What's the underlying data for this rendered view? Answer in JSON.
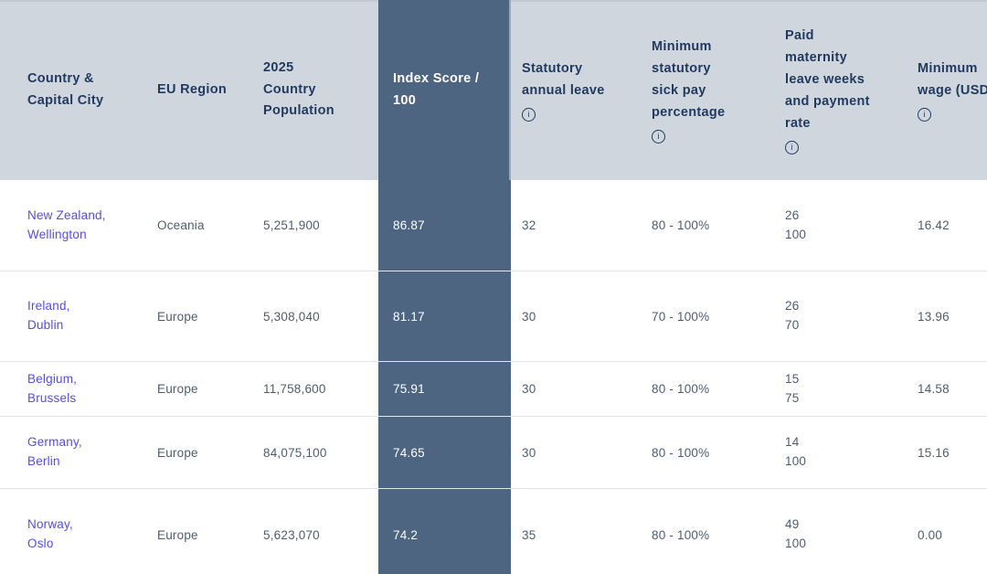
{
  "colors": {
    "header_bg": "#cfd6de",
    "header_top_strip": "#c2cbd4",
    "highlight_column_bg": "#4d6581",
    "header_text": "#233a5f",
    "body_text": "#505c6e",
    "link_text": "#554de8",
    "row_divider": "#e2e6eb",
    "highlight_text": "#ffffff"
  },
  "icons": {
    "info_glyph": "i"
  },
  "table": {
    "columns": [
      {
        "id": "country",
        "lines": [
          "Country &",
          "Capital City"
        ],
        "info": false,
        "highlight": false
      },
      {
        "id": "region",
        "lines": [
          "EU Region"
        ],
        "info": false,
        "highlight": false
      },
      {
        "id": "population",
        "lines": [
          "2025",
          "Country",
          "Population"
        ],
        "info": false,
        "highlight": false
      },
      {
        "id": "index-score",
        "lines": [
          "Index Score /",
          "100"
        ],
        "info": false,
        "highlight": true
      },
      {
        "id": "annual-leave",
        "lines": [
          "Statutory",
          "annual leave"
        ],
        "info": true,
        "highlight": false
      },
      {
        "id": "sick-pay",
        "lines": [
          "Minimum",
          "statutory",
          "sick pay",
          "percentage"
        ],
        "info": true,
        "highlight": false
      },
      {
        "id": "maternity",
        "lines": [
          "Paid",
          "maternity",
          "leave weeks",
          "and payment",
          "rate"
        ],
        "info": true,
        "highlight": false
      },
      {
        "id": "min-wage",
        "lines": [
          "Minimum",
          "wage (USD"
        ],
        "info": true,
        "highlight": false
      }
    ],
    "rows": [
      {
        "country": "New Zealand,",
        "capital": "Wellington",
        "region": "Oceania",
        "population": "5,251,900",
        "index_score": "86.87",
        "annual_leave": "32",
        "sick_pay": "80 - 100%",
        "maternity_weeks": "26",
        "maternity_rate": "100",
        "min_wage": "16.42"
      },
      {
        "country": "Ireland,",
        "capital": "Dublin",
        "region": "Europe",
        "population": "5,308,040",
        "index_score": "81.17",
        "annual_leave": "30",
        "sick_pay": "70 - 100%",
        "maternity_weeks": "26",
        "maternity_rate": "70",
        "min_wage": "13.96"
      },
      {
        "country": "Belgium,",
        "capital": "Brussels",
        "region": "Europe",
        "population": "11,758,600",
        "index_score": "75.91",
        "annual_leave": "30",
        "sick_pay": "80 - 100%",
        "maternity_weeks": "15",
        "maternity_rate": "75",
        "min_wage": "14.58"
      },
      {
        "country": "Germany,",
        "capital": "Berlin",
        "region": "Europe",
        "population": "84,075,100",
        "index_score": "74.65",
        "annual_leave": "30",
        "sick_pay": "80 - 100%",
        "maternity_weeks": "14",
        "maternity_rate": "100",
        "min_wage": "15.16"
      },
      {
        "country": "Norway,",
        "capital": "Oslo",
        "region": "Europe",
        "population": "5,623,070",
        "index_score": "74.2",
        "annual_leave": "35",
        "sick_pay": "80 - 100%",
        "maternity_weeks": "49",
        "maternity_rate": "100",
        "min_wage": "0.00"
      }
    ]
  }
}
